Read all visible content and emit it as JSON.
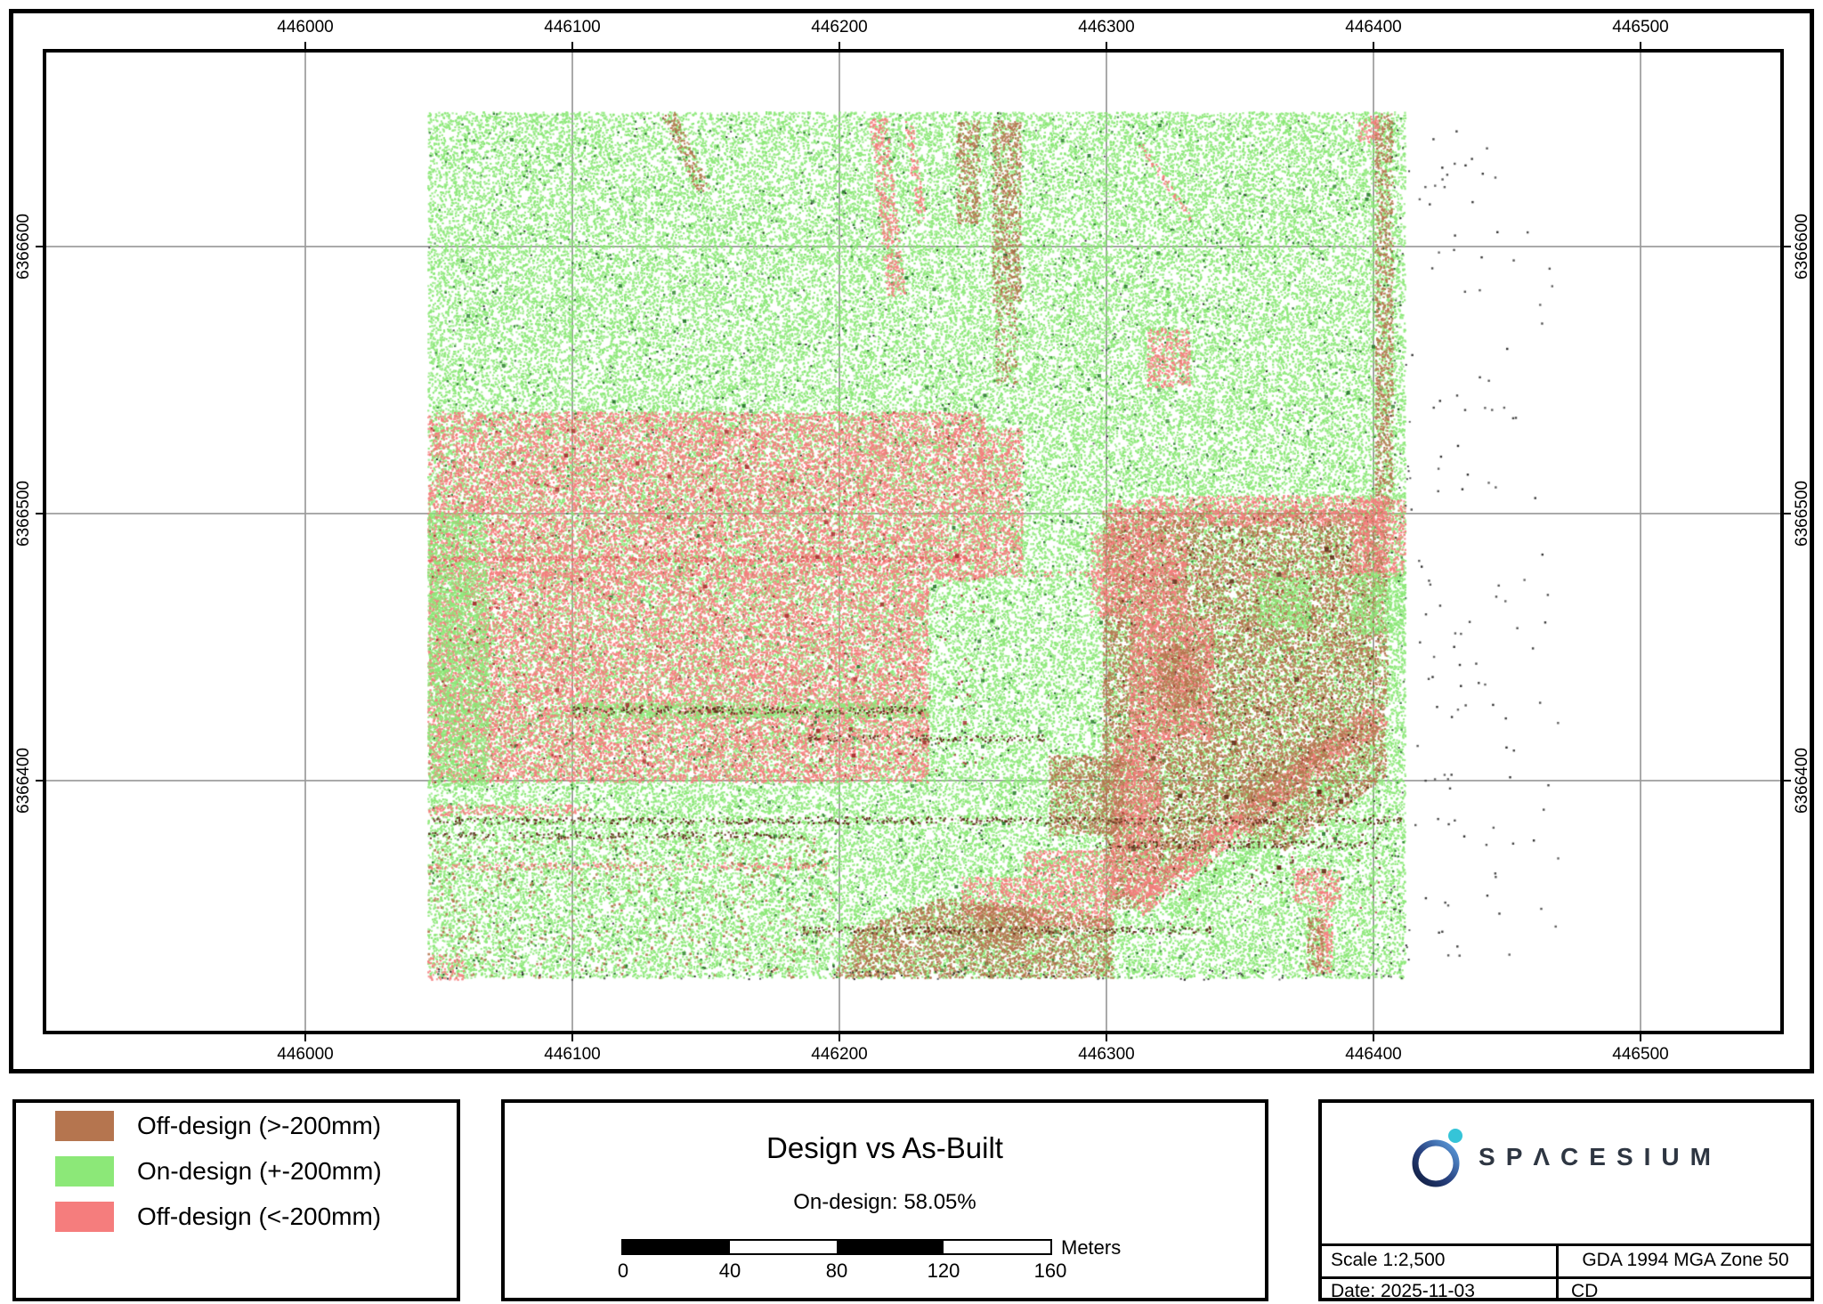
{
  "map": {
    "eastings": [
      "446000",
      "446100",
      "446200",
      "446300",
      "446400",
      "446500"
    ],
    "northings": [
      "6366600",
      "6366500",
      "6366400"
    ]
  },
  "legend": {
    "items": [
      {
        "label": "Off-design (>-200mm)",
        "color": "#b5754f"
      },
      {
        "label": "On-design (+-200mm)",
        "color": "#8ce878"
      },
      {
        "label": "Off-design (<-200mm)",
        "color": "#f57d7d"
      }
    ]
  },
  "title_block": {
    "title": "Design vs As-Built",
    "subtitle": "On-design: 58.05%",
    "scalebar": {
      "labels": [
        "0",
        "40",
        "80",
        "120",
        "160"
      ],
      "unit": "Meters"
    }
  },
  "info_block": {
    "logo_text": "SPACESIUM",
    "logo_display": "SPΛCESIUM",
    "scale": "Scale 1:2,500",
    "crs": "GDA 1994 MGA Zone 50",
    "date": "Date: 2025-11-03",
    "author": "CD",
    "accent_color": "#35c4d8"
  },
  "colors": {
    "grid": "#9b9b9b",
    "frame": "#000000",
    "sparse_points": "#2a2a2a"
  }
}
